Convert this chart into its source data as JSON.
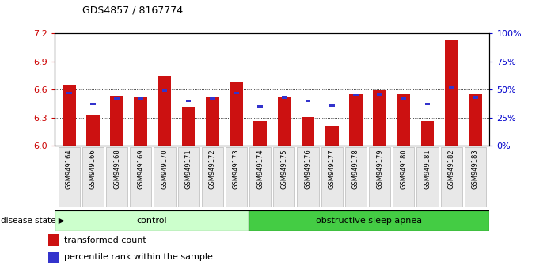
{
  "title": "GDS4857 / 8167774",
  "samples": [
    "GSM949164",
    "GSM949166",
    "GSM949168",
    "GSM949169",
    "GSM949170",
    "GSM949171",
    "GSM949172",
    "GSM949173",
    "GSM949174",
    "GSM949175",
    "GSM949176",
    "GSM949177",
    "GSM949178",
    "GSM949179",
    "GSM949180",
    "GSM949181",
    "GSM949182",
    "GSM949183"
  ],
  "red_values": [
    6.65,
    6.32,
    6.53,
    6.52,
    6.75,
    6.42,
    6.52,
    6.68,
    6.26,
    6.52,
    6.31,
    6.21,
    6.55,
    6.59,
    6.55,
    6.26,
    7.13,
    6.55
  ],
  "blue_pct": [
    47,
    37,
    42,
    42,
    49,
    40,
    42,
    47,
    35,
    43,
    40,
    36,
    45,
    46,
    42,
    37,
    52,
    43
  ],
  "control_count": 8,
  "ymin": 6.0,
  "ymax": 7.2,
  "yticks_left": [
    6.0,
    6.3,
    6.6,
    6.9,
    7.2
  ],
  "yticks_right_pct": [
    0,
    25,
    50,
    75,
    100
  ],
  "bar_color": "#cc1111",
  "blue_color": "#3333cc",
  "control_color": "#ccffcc",
  "apnea_color": "#44cc44",
  "label_color_red": "#cc0000",
  "label_color_blue": "#0000cc",
  "legend_red": "transformed count",
  "legend_blue": "percentile rank within the sample",
  "control_label": "control",
  "apnea_label": "obstructive sleep apnea",
  "disease_label": "disease state"
}
